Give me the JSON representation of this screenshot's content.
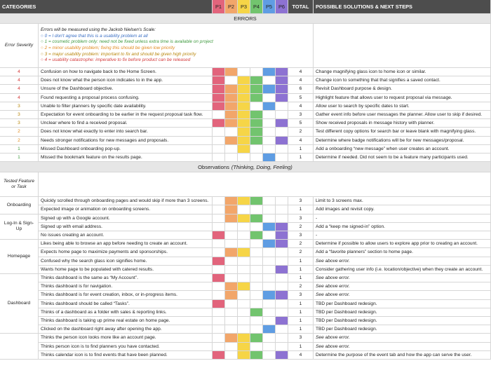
{
  "header": {
    "categories": "CATEGORIES",
    "participants": [
      {
        "label": "P1",
        "color": "#e2647c"
      },
      {
        "label": "P2",
        "color": "#f2a66a"
      },
      {
        "label": "P3",
        "color": "#f6d547"
      },
      {
        "label": "P4",
        "color": "#72c46e"
      },
      {
        "label": "P5",
        "color": "#5f9de3"
      },
      {
        "label": "P6",
        "color": "#8d72d2"
      }
    ],
    "total": "TOTAL",
    "solutions": "POSSIBLE SOLUTIONS & NEXT STEPS"
  },
  "errors": {
    "title": "ERRORS",
    "severity_label": "Error Severity",
    "scale": {
      "heading": "Errors will be measured using the Jackob Nielsen's Scale:",
      "levels": [
        {
          "text": "○ 0 = I don't agree that this is a usability problem at all",
          "color": "#3a6fc4"
        },
        {
          "text": "○ 1 = cosmetic problem only: need not be fixed unless extra time is available on project",
          "color": "#3f9a3f"
        },
        {
          "text": "○ 2 = minor usability problem; fixing this should be given low priority",
          "color": "#e08a1e"
        },
        {
          "text": "○ 3 = major usability problem: important to fix and should be given high priority",
          "color": "#b8860b"
        },
        {
          "text": "○ 4 = usability catastrophe: imperative to fix before product can be released",
          "color": "#d43c3c"
        }
      ]
    },
    "rows": [
      {
        "severity": 4,
        "issue": "Confusion on how to navigate back to the Home Screen.",
        "participants": [
          true,
          true,
          false,
          false,
          true,
          true
        ],
        "total": 4,
        "solution": "Change magnifying glass icon to home icon or similar."
      },
      {
        "severity": 4,
        "issue": "Does not know what the person icon indicates to in the app.",
        "participants": [
          true,
          false,
          true,
          true,
          false,
          true
        ],
        "total": 4,
        "solution": "Change icon to something that that signifies a saved contact."
      },
      {
        "severity": 4,
        "issue": "Unsure of the Dashboard objective.",
        "participants": [
          true,
          true,
          true,
          true,
          true,
          true
        ],
        "total": 6,
        "solution": "Revisit Dashboard purpose & design."
      },
      {
        "severity": 4,
        "issue": "Found requesting a proposal process confusing.",
        "participants": [
          true,
          true,
          true,
          true,
          false,
          true
        ],
        "total": 5,
        "solution": "Highlight feature that allows user to request proposal via message."
      },
      {
        "severity": 3,
        "issue": "Unable to filter planners by specific date availability.",
        "participants": [
          true,
          true,
          true,
          false,
          true,
          false
        ],
        "total": 4,
        "solution": "Allow user to search by specific dates to start."
      },
      {
        "severity": 3,
        "issue": "Expectation for event onboarding to be earlier in the request proposal task flow.",
        "participants": [
          false,
          true,
          true,
          true,
          false,
          false
        ],
        "total": 3,
        "solution": "Gather event info before user messages the planner. Allow user to skip if desired."
      },
      {
        "severity": 3,
        "issue": "Unclear where to find a received proposal.",
        "participants": [
          true,
          true,
          true,
          true,
          false,
          true
        ],
        "total": 5,
        "solution": "Show received proposals in message history with planner."
      },
      {
        "severity": 2,
        "issue": "Does not know what exactly to enter into search bar.",
        "participants": [
          false,
          false,
          true,
          true,
          false,
          false
        ],
        "total": 2,
        "solution": "Test different copy options for search bar or leave blank with magnifying glass."
      },
      {
        "severity": 2,
        "issue": "Needs stronger notifications for new messages and proposals.",
        "participants": [
          false,
          true,
          true,
          true,
          false,
          true
        ],
        "total": 4,
        "solution": "Determine where badge notifications will be for new messages/proposal."
      },
      {
        "severity": 1,
        "issue": "Missed Dashboard onboarding pop-up.",
        "participants": [
          false,
          false,
          true,
          false,
          false,
          false
        ],
        "total": 1,
        "solution": "Add a onboarding “new message” when user creates an account."
      },
      {
        "severity": 1,
        "issue": "Missed the bookmark feature on the results page.",
        "participants": [
          false,
          false,
          false,
          false,
          true,
          false
        ],
        "total": 1,
        "solution": "Determine if needed. Did not seem to be a feature many participants used."
      }
    ]
  },
  "observations": {
    "title": "Observations",
    "subtitle": "(Thinking, Doing, Feeling)",
    "tested_label": "Tested Feature or Task",
    "groups": [
      {
        "name": "Onboarding",
        "rows": [
          {
            "note": "Quickly scrolled through onboarding pages and would skip if more than 3 screens.",
            "participants": [
              false,
              true,
              true,
              true,
              false,
              false
            ],
            "total": 3,
            "solution": "Limit to 3 screens max."
          },
          {
            "note": "Expected image or animation on onboarding screens.",
            "participants": [
              false,
              true,
              false,
              false,
              false,
              false
            ],
            "total": 1,
            "solution": "Add images and revisit copy."
          }
        ]
      },
      {
        "name": "Log-In & Sign-Up",
        "rows": [
          {
            "note": "Signed up with a Google account.",
            "participants": [
              false,
              true,
              true,
              true,
              false,
              false
            ],
            "total": 3,
            "solution": "-"
          },
          {
            "note": "Signed up with email address.",
            "participants": [
              false,
              false,
              false,
              false,
              true,
              true
            ],
            "total": 2,
            "solution": "Add a “keep me signed-in” option."
          },
          {
            "note": "No issues creating an account.",
            "participants": [
              true,
              false,
              false,
              true,
              false,
              true
            ],
            "total": 3,
            "solution": "-"
          }
        ]
      },
      {
        "name": "Homepage",
        "rows": [
          {
            "note": "Likes being able to browse an app before needing to create an account.",
            "participants": [
              false,
              false,
              false,
              false,
              true,
              true
            ],
            "total": 2,
            "solution": "Determine if possible to allow users to explore app prior to creating an account."
          },
          {
            "note": "Expects home page to maximize payments and sponsorships.",
            "participants": [
              false,
              true,
              true,
              false,
              false,
              false
            ],
            "total": 2,
            "solution": "Add a “favorite planners” section to home page."
          },
          {
            "note": "Confused why the search glass icon signifies home.",
            "participants": [
              true,
              false,
              false,
              false,
              false,
              false
            ],
            "total": 1,
            "solution": "See above error."
          },
          {
            "note": "Wants home page to be populated with catered results.",
            "participants": [
              false,
              false,
              false,
              false,
              false,
              true
            ],
            "total": 1,
            "solution": "Consider gathering user info (i.e. location/objective) when they create an account."
          }
        ]
      },
      {
        "name": "Dashboard",
        "rows": [
          {
            "note": "Thinks dashboard is the same as “My Account”.",
            "participants": [
              true,
              false,
              false,
              false,
              false,
              false
            ],
            "total": 1,
            "solution": "See above error."
          },
          {
            "note": "Thinks dashboard is for navigation.",
            "participants": [
              false,
              true,
              true,
              false,
              false,
              false
            ],
            "total": 2,
            "solution": "See above error."
          },
          {
            "note": "Thinks dashboard is for event creation, inbox, or in-progress items.",
            "participants": [
              false,
              true,
              false,
              false,
              true,
              true
            ],
            "total": 3,
            "solution": "See above error."
          },
          {
            "note": "Thinks dashboard should be called “Tasks”.",
            "participants": [
              true,
              false,
              false,
              false,
              false,
              false
            ],
            "total": 1,
            "solution": "TBD per Dashboard redesign."
          },
          {
            "note": "Thinks of a dashboard as a folder with sales & reporting links.",
            "participants": [
              false,
              false,
              false,
              true,
              false,
              false
            ],
            "total": 1,
            "solution": "TBD per Dashboard redesign."
          },
          {
            "note": "Thinks dashboard is taking up prime real estate on home page.",
            "participants": [
              false,
              false,
              false,
              false,
              false,
              true
            ],
            "total": 1,
            "solution": "TBD per Dashboard redesign."
          },
          {
            "note": "Clicked on the dashboard right away after opening the app.",
            "participants": [
              false,
              false,
              false,
              false,
              true,
              false
            ],
            "total": 1,
            "solution": "TBD per Dashboard redesign."
          }
        ]
      },
      {
        "name": null,
        "rows": [
          {
            "note": "Thinks the person icon looks more like an account page.",
            "participants": [
              false,
              true,
              true,
              true,
              false,
              false
            ],
            "total": 3,
            "solution": "See above error."
          },
          {
            "note": "Thinks person icon is to find planners you have contacted.",
            "participants": [
              false,
              false,
              true,
              false,
              false,
              false
            ],
            "total": 1,
            "solution": "See above error."
          },
          {
            "note": "Thinks calendar icon is to find events that have been planned.",
            "participants": [
              true,
              false,
              true,
              true,
              false,
              true
            ],
            "total": 4,
            "solution": "Determine the purpose of the event tab and how the app can serve the user."
          }
        ]
      }
    ]
  }
}
